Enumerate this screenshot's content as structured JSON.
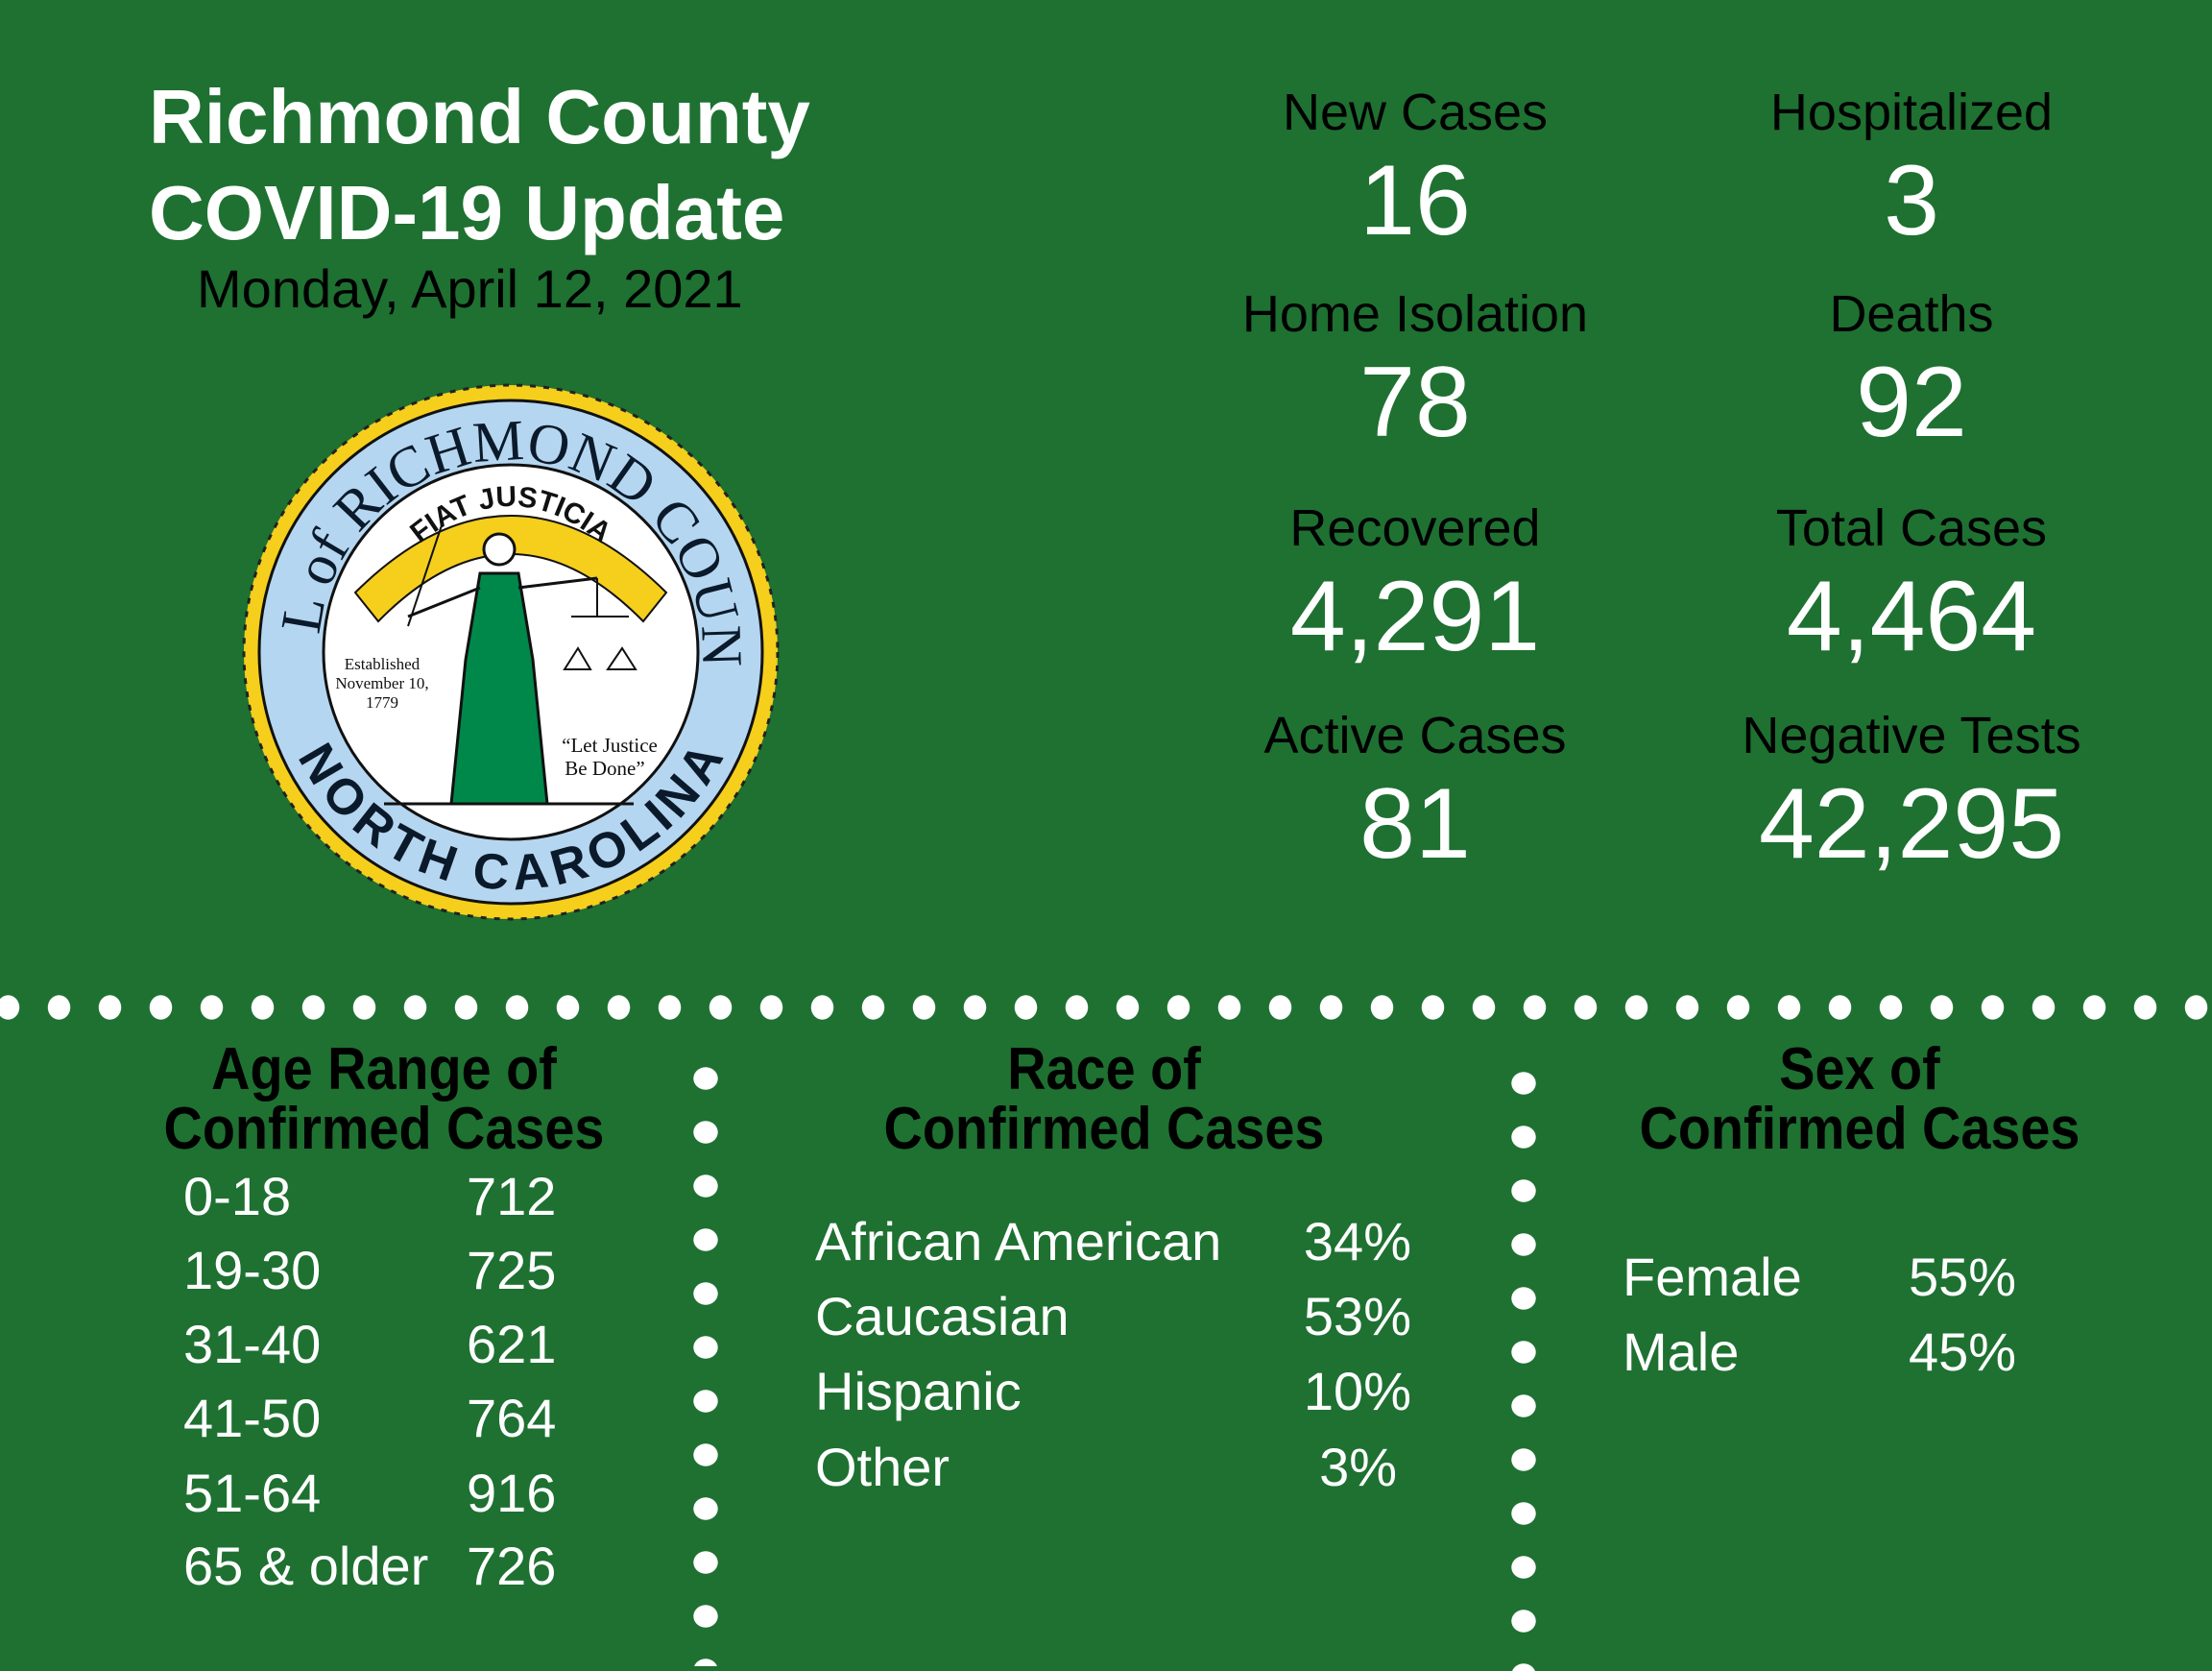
{
  "header": {
    "title_line1": "Richmond County",
    "title_line2": "COVID-19 Update",
    "date": "Monday, April 12, 2021"
  },
  "seal": {
    "top_text": "SEAL of RICHMOND COUNTY",
    "bottom_text": "NORTH CAROLINA",
    "motto": "FIAT JUSTICIA",
    "established": [
      "Established",
      "November 10,",
      "1779"
    ],
    "quote": [
      "“Let Justice",
      "Be Done”"
    ],
    "colors": {
      "ring": "#b5d6f0",
      "rope": "#f5cf1c",
      "dress": "#00884a",
      "text": "#0b1a2a"
    }
  },
  "stats": [
    {
      "label": "New Cases",
      "value": "16"
    },
    {
      "label": "Hospitalized",
      "value": "3"
    },
    {
      "label": "Home Isolation",
      "value": "78"
    },
    {
      "label": "Deaths",
      "value": "92"
    },
    {
      "label": "Recovered",
      "value": "4,291"
    },
    {
      "label": "Total Cases",
      "value": "4,464"
    },
    {
      "label": "Active Cases",
      "value": "81"
    },
    {
      "label": "Negative Tests",
      "value": "42,295"
    }
  ],
  "age": {
    "title_line1": "Age Range of",
    "title_line2": "Confirmed Cases",
    "rows": [
      {
        "range": "0-18",
        "count": "712"
      },
      {
        "range": "19-30",
        "count": "725"
      },
      {
        "range": "31-40",
        "count": "621"
      },
      {
        "range": "41-50",
        "count": "764"
      },
      {
        "range": "51-64",
        "count": "916"
      },
      {
        "range": "65 & older",
        "count": "726"
      }
    ]
  },
  "race": {
    "title_line1": "Race of",
    "title_line2": "Confirmed Cases",
    "rows": [
      {
        "label": "African American",
        "pct": "34%"
      },
      {
        "label": "Caucasian",
        "pct": "53%"
      },
      {
        "label": "Hispanic",
        "pct": "10%"
      },
      {
        "label": "Other",
        "pct": "3%"
      }
    ]
  },
  "sex": {
    "title_line1": "Sex of",
    "title_line2": "Confirmed Cases",
    "rows": [
      {
        "label": "Female",
        "pct": "55%"
      },
      {
        "label": "Male",
        "pct": "45%"
      }
    ]
  },
  "colors": {
    "background": "#1e7131",
    "accent_text": "#ffffff"
  }
}
